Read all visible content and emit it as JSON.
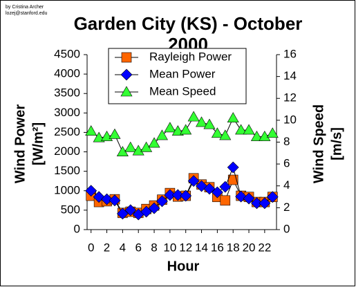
{
  "chart_data": {
    "type": "line",
    "title_lines": [
      "Garden City (KS) - October",
      "2000"
    ],
    "credit": [
      "by Cristina Archer",
      "lozej@stanford.edu"
    ],
    "x_label": "Hour",
    "y_label": [
      "Wind Power",
      "[W/m²]"
    ],
    "y2_label": [
      "Wind Speed",
      "[m/s]"
    ],
    "x": [
      0,
      1,
      2,
      3,
      4,
      5,
      6,
      7,
      8,
      9,
      10,
      11,
      12,
      13,
      14,
      15,
      16,
      17,
      18,
      19,
      20,
      21,
      22,
      23
    ],
    "xlim": [
      -0.5,
      23.5
    ],
    "xticks": [
      0,
      2,
      4,
      6,
      8,
      10,
      12,
      14,
      16,
      18,
      20,
      22
    ],
    "ylim": [
      0,
      4500
    ],
    "yticks": [
      0,
      500,
      1000,
      1500,
      2000,
      2500,
      3000,
      3500,
      4000,
      4500
    ],
    "y2lim": [
      0,
      16
    ],
    "y2ticks": [
      0,
      2,
      4,
      6,
      8,
      10,
      12,
      14,
      16
    ],
    "series": [
      {
        "name": "Rayleigh Power",
        "color": "#ff6600",
        "marker": "square",
        "values": [
          870,
          710,
          730,
          780,
          430,
          460,
          430,
          530,
          620,
          770,
          940,
          850,
          870,
          1320,
          1160,
          1090,
          840,
          750,
          1280,
          870,
          840,
          710,
          710,
          840
        ]
      },
      {
        "name": "Mean Power",
        "color": "#0000ff",
        "marker": "diamond",
        "values": [
          1000,
          840,
          780,
          750,
          410,
          500,
          390,
          460,
          550,
          730,
          890,
          890,
          870,
          1250,
          1120,
          1050,
          960,
          1100,
          1600,
          850,
          800,
          680,
          680,
          840
        ]
      },
      {
        "name": "Mean Speed",
        "color": "#33ff33",
        "marker": "triangle",
        "axis": "y2",
        "values": [
          9.0,
          8.4,
          8.5,
          8.7,
          7.1,
          7.5,
          7.2,
          7.5,
          7.9,
          8.6,
          9.3,
          9.0,
          9.1,
          10.3,
          9.8,
          9.6,
          8.8,
          8.6,
          10.2,
          9.1,
          9.1,
          8.5,
          8.5,
          8.8
        ]
      }
    ]
  }
}
